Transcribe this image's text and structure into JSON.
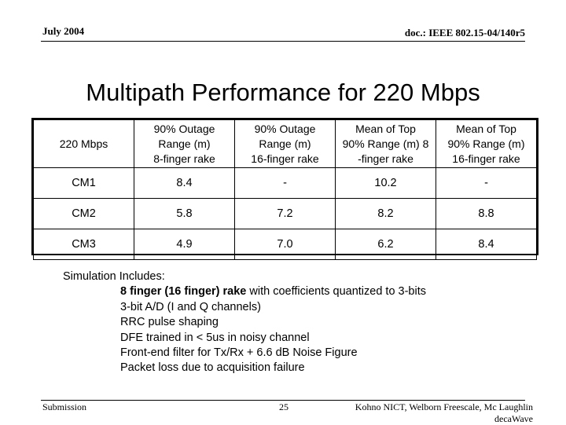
{
  "header": {
    "date": "July 2004",
    "doc_id": "doc.: IEEE 802.15-04/140r5"
  },
  "title": "Multipath Performance for 220 Mbps",
  "table": {
    "head": {
      "c0": "220 Mbps",
      "c1": [
        "90% Outage",
        "Range (m)",
        "8-finger rake"
      ],
      "c2": [
        "90% Outage",
        "Range (m)",
        "16-finger rake"
      ],
      "c3": [
        "Mean of Top",
        "90% Range (m) 8",
        "-finger rake"
      ],
      "c4": [
        "Mean of Top",
        "90% Range (m)",
        "16-finger rake"
      ]
    },
    "rows": [
      [
        "CM1",
        "8.4",
        "-",
        "10.2",
        "-"
      ],
      [
        "CM2",
        "5.8",
        "7.2",
        "8.2",
        "8.8"
      ],
      [
        "CM3",
        "4.9",
        "7.0",
        "6.2",
        "8.4"
      ]
    ]
  },
  "simulation": {
    "heading": "Simulation Includes:",
    "first_item_bold": "8 finger (16 finger) rake",
    "first_item_rest": " with coefficients quantized to 3-bits",
    "items": [
      "3-bit A/D (I and Q channels)",
      "RRC pulse shaping",
      "DFE trained in < 5us in noisy channel",
      "Front-end filter for Tx/Rx + 6.6 dB Noise Figure",
      "Packet loss due to acquisition failure"
    ]
  },
  "footer": {
    "left": "Submission",
    "page": "25",
    "authors_line1": "Kohno NICT, Welborn Freescale, Mc Laughlin",
    "authors_line2": "decaWave"
  }
}
